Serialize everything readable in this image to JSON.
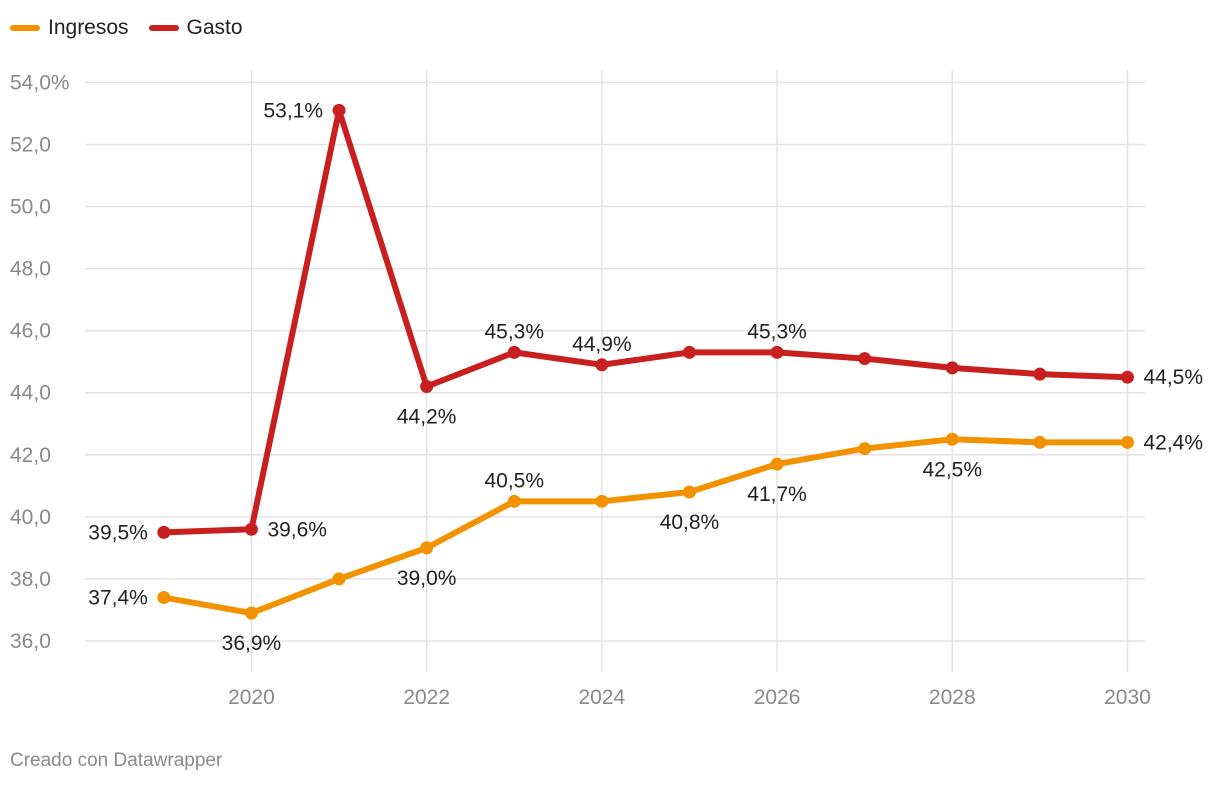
{
  "chart_data": {
    "type": "line",
    "title": "",
    "xlabel": "",
    "ylabel": "",
    "x": [
      2019,
      2020,
      2021,
      2022,
      2023,
      2024,
      2025,
      2026,
      2027,
      2028,
      2029,
      2030
    ],
    "series": [
      {
        "name": "Ingresos",
        "color": "#f39200",
        "values": [
          37.4,
          36.9,
          38.0,
          39.0,
          40.5,
          40.5,
          40.8,
          41.7,
          42.2,
          42.5,
          42.4,
          42.4
        ],
        "labels": [
          "37,4%",
          "36,9%",
          null,
          "39,0%",
          "40,5%",
          null,
          "40,8%",
          "41,7%",
          null,
          "42,5%",
          null,
          "42,4%"
        ]
      },
      {
        "name": "Gasto",
        "color": "#c8201e",
        "values": [
          39.5,
          39.6,
          53.1,
          44.2,
          45.3,
          44.9,
          45.3,
          45.3,
          45.1,
          44.8,
          44.6,
          44.5
        ],
        "labels": [
          "39,5%",
          "39,6%",
          "53,1%",
          "44,2%",
          "45,3%",
          "44,9%",
          null,
          "45,3%",
          null,
          null,
          null,
          "44,5%"
        ]
      }
    ],
    "y_ticks": [
      36,
      38,
      40,
      42,
      44,
      46,
      48,
      50,
      52,
      54
    ],
    "y_tick_labels": [
      "36,0",
      "38,0",
      "40,0",
      "42,0",
      "44,0",
      "46,0",
      "48,0",
      "50,0",
      "52,0",
      "54,0%"
    ],
    "x_ticks": [
      2020,
      2022,
      2024,
      2026,
      2028,
      2030
    ],
    "x_tick_labels": [
      "2020",
      "2022",
      "2024",
      "2026",
      "2028",
      "2030"
    ],
    "xlim": [
      2018.1,
      2030.2
    ],
    "ylim": [
      35,
      54.4
    ],
    "grid": true,
    "legend": "top-left"
  },
  "footer": {
    "credit": "Creado con Datawrapper"
  }
}
